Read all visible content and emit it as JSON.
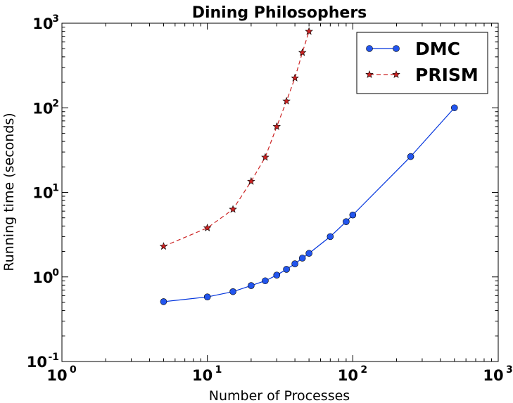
{
  "chart_data": {
    "type": "line",
    "title": "Dining Philosophers",
    "xlabel": "Number of Processes",
    "ylabel": "Running time (seconds)",
    "xscale": "log",
    "yscale": "log",
    "xlim": [
      1,
      1000
    ],
    "ylim": [
      0.1,
      1000
    ],
    "grid": false,
    "legend_position": "top-right",
    "x_ticks": [
      {
        "value": 1,
        "base": "10",
        "exp": "0"
      },
      {
        "value": 10,
        "base": "10",
        "exp": "1"
      },
      {
        "value": 100,
        "base": "10",
        "exp": "2"
      },
      {
        "value": 1000,
        "base": "10",
        "exp": "3"
      }
    ],
    "y_ticks": [
      {
        "value": 0.1,
        "base": "10",
        "exp": "-1"
      },
      {
        "value": 1,
        "base": "10",
        "exp": "0"
      },
      {
        "value": 10,
        "base": "10",
        "exp": "1"
      },
      {
        "value": 100,
        "base": "10",
        "exp": "2"
      },
      {
        "value": 1000,
        "base": "10",
        "exp": "3"
      }
    ],
    "series": [
      {
        "name": "DMC",
        "color": "#0033dd",
        "marker_color": "#2255ee",
        "line_style": "solid",
        "marker": "circle",
        "x": [
          5,
          10,
          15,
          20,
          25,
          30,
          35,
          40,
          45,
          50,
          70,
          90,
          100,
          250,
          500
        ],
        "y": [
          0.51,
          0.58,
          0.67,
          0.79,
          0.9,
          1.05,
          1.23,
          1.43,
          1.67,
          1.9,
          3.0,
          4.5,
          5.4,
          26.5,
          100
        ]
      },
      {
        "name": "PRISM",
        "color": "#cc2222",
        "marker_color": "#cc2222",
        "line_style": "dashed",
        "marker": "star",
        "x": [
          5,
          10,
          15,
          20,
          25,
          30,
          35,
          40,
          45,
          50
        ],
        "y": [
          2.3,
          3.8,
          6.3,
          13.5,
          26,
          60,
          120,
          225,
          450,
          800
        ]
      }
    ]
  }
}
